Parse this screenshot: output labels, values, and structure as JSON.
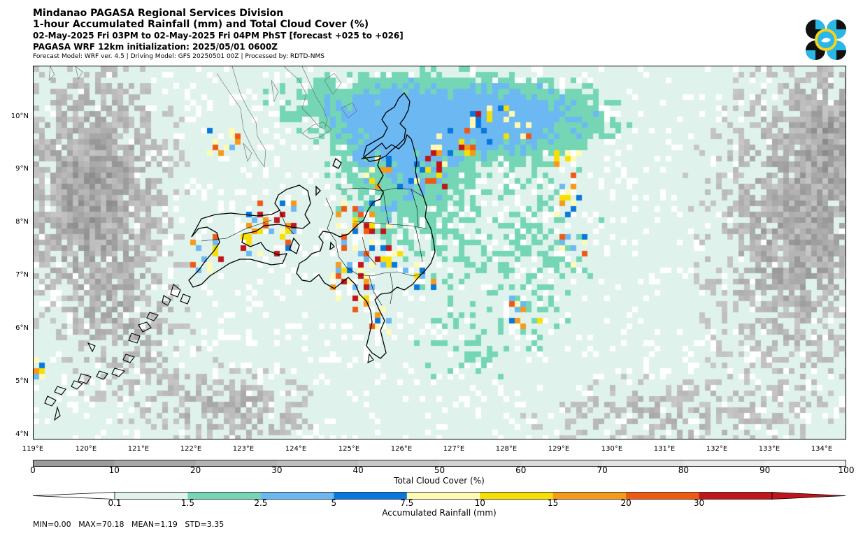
{
  "header": {
    "line1": "Mindanao PAGASA Regional Services Division",
    "line2": "1-hour Accumulated Rainfall (mm) and Total Cloud Cover (%)",
    "line3": "02-May-2025 Fri 03PM to 02-May-2025 Fri 04PM PhST [forecast +025 to +026]",
    "line4": "PAGASA WRF 12km initialization: 2025/05/01 0600Z",
    "line5": "Forecast Model: WRF ver. 4.5 | Driving Model: GFS 20250501 00Z | Processed by: RDTD-NMS"
  },
  "logo": {
    "icon": "pagasa-logo-icon",
    "colors": [
      "#111111",
      "#29b6e8",
      "#f7d317"
    ]
  },
  "map": {
    "lat_labels": [
      "10°N",
      "9°N",
      "8°N",
      "7°N",
      "6°N",
      "5°N",
      "4°N"
    ],
    "lon_labels": [
      "119°E",
      "120°E",
      "121°E",
      "122°E",
      "123°E",
      "124°E",
      "125°E",
      "126°E",
      "127°E",
      "128°E",
      "129°E",
      "130°E",
      "131°E",
      "132°E",
      "133°E",
      "134°E"
    ],
    "lon_range": [
      119,
      134.5
    ],
    "lat_range": [
      3.9,
      11.0
    ]
  },
  "cloud_colorbar": {
    "title": "Total Cloud Cover (%)",
    "ticks": [
      "0",
      "10",
      "20",
      "30",
      "40",
      "50",
      "60",
      "70",
      "80",
      "90",
      "100"
    ],
    "colors": [
      "#9b9b9b",
      "#a8a8a8",
      "#b4b4b4",
      "#bebebe",
      "#c8c8c8",
      "#d2d2d2",
      "#dbdbdb",
      "#e3e3e3",
      "#ebebeb",
      "#f3f3f3"
    ]
  },
  "rain_colorbar": {
    "title": "Accumulated Rainfall (mm)",
    "ticks": [
      "0.1",
      "1.5",
      "2.5",
      "5",
      "7.5",
      "10",
      "15",
      "20",
      "30"
    ],
    "colors": [
      "#dff3ec",
      "#74d6b5",
      "#6cb8f3",
      "#0877de",
      "#fffbb5",
      "#f7df05",
      "#f59a1a",
      "#ee5a13",
      "#c0151a"
    ]
  },
  "stats": {
    "min_label": "MIN=",
    "min": "0.00",
    "max_label": "MAX=",
    "max": "70.18",
    "mean_label": "MEAN=",
    "mean": "1.19",
    "std_label": "STD=",
    "std": "3.35"
  }
}
